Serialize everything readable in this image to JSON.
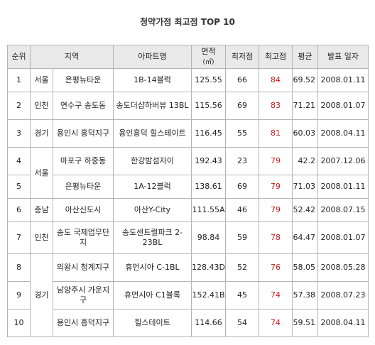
{
  "title": "청약가점 최고점 TOP 10",
  "headers": {
    "rank": "순위",
    "region": "지역",
    "apartment": "아파트명",
    "area": "면적",
    "area_unit": "(㎡)",
    "min": "최저점",
    "max": "최고점",
    "avg": "평균",
    "date": "발표 일자"
  },
  "rows": [
    {
      "rank": "1",
      "region": "서울",
      "district": "은평뉴타운",
      "apt": "1B-14블럭",
      "area": "125.55",
      "min": "66",
      "max": "84",
      "avg": "69.52",
      "date": "2008.01.11"
    },
    {
      "rank": "2",
      "region": "인천",
      "district": "연수구 송도동",
      "apt": "송도더샵하버뷰 13BL",
      "area": "115.56",
      "min": "69",
      "max": "83",
      "avg": "71.21",
      "date": "2008.01.07"
    },
    {
      "rank": "3",
      "region": "경기",
      "district": "용인시 흥덕지구",
      "apt": "용인흥덕 힐스테이트",
      "area": "116.45",
      "min": "55",
      "max": "81",
      "avg": "60.03",
      "date": "2008.04.11"
    },
    {
      "rank": "4",
      "region": "서울",
      "district": "마포구 하중동",
      "apt": "한강밤섬자이",
      "area": "192.43",
      "min": "23",
      "max": "79",
      "avg": "42.2",
      "date": "2007.12.06"
    },
    {
      "rank": "5",
      "district": "은평뉴타운",
      "apt": "1A-12블럭",
      "area": "138.61",
      "min": "69",
      "max": "79",
      "avg": "71.03",
      "date": "2008.01.11"
    },
    {
      "rank": "6",
      "region": "충남",
      "district": "아산신도시",
      "apt": "아산Y-City",
      "area": "111.55A",
      "min": "46",
      "max": "79",
      "avg": "52.42",
      "date": "2008.07.15"
    },
    {
      "rank": "7",
      "region": "인천",
      "district": "송도 국제업무단지",
      "apt": "송도센트럴파크 2-23BL",
      "area": "98.84",
      "min": "59",
      "max": "78",
      "avg": "64.47",
      "date": "2008.01.07"
    },
    {
      "rank": "8",
      "region": "경기",
      "district": "의왕시 청계지구",
      "apt": "휴먼시아 C-1BL",
      "area": "128.43D",
      "min": "52",
      "max": "76",
      "avg": "58.05",
      "date": "2008.05.28"
    },
    {
      "rank": "9",
      "district": "남양주시 가운지구",
      "apt": "휴먼시아 C1블록",
      "area": "152.41B",
      "min": "45",
      "max": "74",
      "avg": "57.38",
      "date": "2008.07.23"
    },
    {
      "rank": "10",
      "district": "용인시 흥덕지구",
      "apt": "힐스테이트",
      "area": "114.66",
      "min": "54",
      "max": "74",
      "avg": "59.51",
      "date": "2008.04.11"
    }
  ]
}
